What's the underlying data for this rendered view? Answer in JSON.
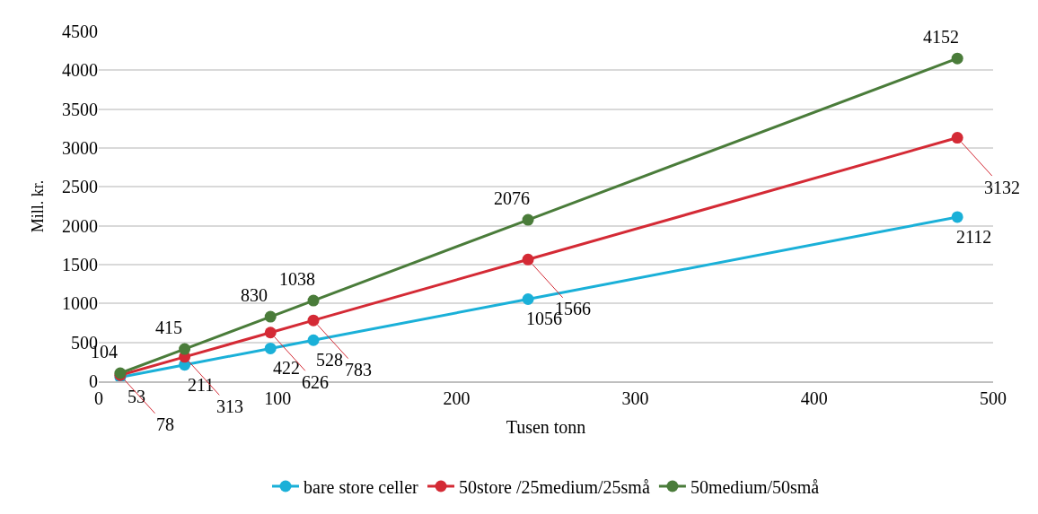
{
  "chart_data": {
    "type": "line",
    "xlabel": "Tusen tonn",
    "ylabel": "Mill. kr.",
    "x": [
      12,
      48,
      96,
      120,
      240,
      480
    ],
    "series": [
      {
        "name": "bare store celler",
        "color": "#1ab0d8",
        "values": [
          53,
          211,
          422,
          528,
          1056,
          2112
        ]
      },
      {
        "name": "50store /25medium/25små",
        "color": "#d42a35",
        "values": [
          78,
          313,
          626,
          783,
          1566,
          3132
        ]
      },
      {
        "name": "50medium/50små",
        "color": "#4a7c3a",
        "values": [
          104,
          415,
          830,
          1038,
          2076,
          4152
        ]
      }
    ],
    "xlim": [
      0,
      500
    ],
    "xticks": [
      0,
      100,
      200,
      300,
      400,
      500
    ],
    "ylim": [
      0,
      4500
    ],
    "yticks": [
      0,
      500,
      1000,
      1500,
      2000,
      2500,
      3000,
      3500,
      4000,
      4500
    ],
    "grid": "y",
    "legend": "bottom",
    "marker": "circle",
    "line_style": "solid",
    "data_labels": true
  }
}
